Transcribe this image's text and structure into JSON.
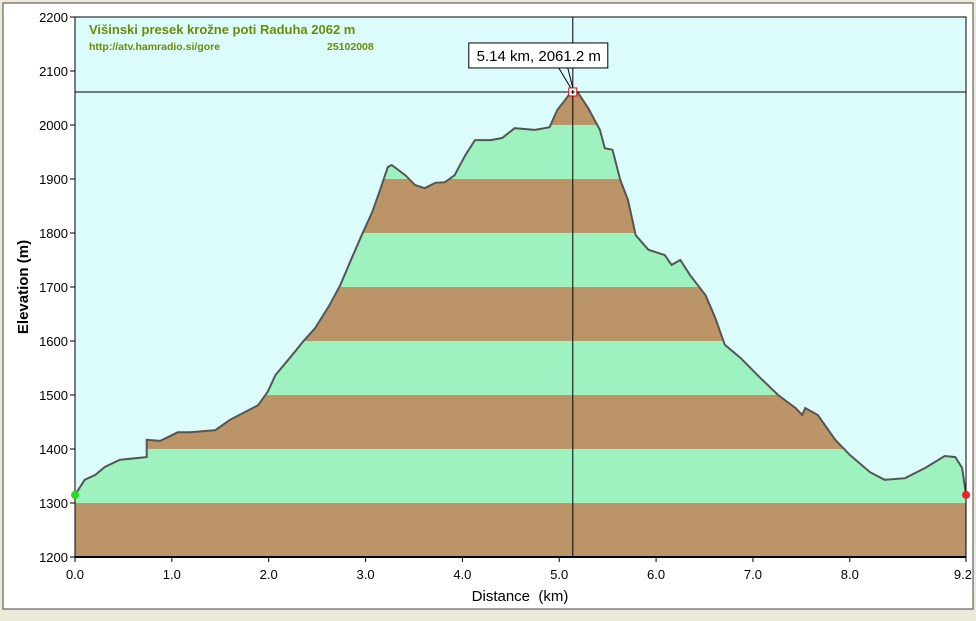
{
  "chart_data": {
    "type": "area",
    "title": "Višinski presek krožne poti Raduha 2062 m",
    "subtitle_url": "http://atv.hamradio.si/gore",
    "subtitle_date": "25102008",
    "xlabel": "Distance  (km)",
    "ylabel": "Elevation (m)",
    "xlim": [
      0,
      9.2
    ],
    "ylim": [
      1200,
      2200
    ],
    "x_ticks": [
      "0.0",
      "1.0",
      "2.0",
      "3.0",
      "4.0",
      "5.0",
      "6.0",
      "7.0",
      "8.0",
      "9.2"
    ],
    "x_tick_values": [
      0,
      1,
      2,
      3,
      4,
      5,
      6,
      7,
      8,
      9.2
    ],
    "y_ticks": [
      "1200",
      "1300",
      "1400",
      "1500",
      "1600",
      "1700",
      "1800",
      "1900",
      "2000",
      "2100",
      "2200"
    ],
    "y_tick_values": [
      1200,
      1300,
      1400,
      1500,
      1600,
      1700,
      1800,
      1900,
      2000,
      2100,
      2200
    ],
    "band_step": 100,
    "colors": {
      "plot_bg": "#dcfcfc",
      "band_a": "#bb9467",
      "band_b": "#9ef2c0",
      "line": "#555555",
      "title": "#6b8c00",
      "start": "#22dd22",
      "end": "#ee2222"
    },
    "cursor": {
      "x": 5.14,
      "y": 2061.2,
      "label": "5.14 km, 2061.2 m"
    },
    "x": [
      0,
      0.1,
      0.21,
      0.31,
      0.46,
      0.74,
      0.74,
      0.88,
      1.06,
      1.19,
      1.45,
      1.6,
      1.76,
      1.89,
      1.99,
      2.07,
      2.22,
      2.37,
      2.48,
      2.63,
      2.74,
      2.84,
      2.96,
      3.07,
      3.15,
      3.23,
      3.27,
      3.41,
      3.51,
      3.61,
      3.72,
      3.82,
      3.92,
      4.03,
      4.13,
      4.29,
      4.41,
      4.54,
      4.75,
      4.9,
      4.98,
      5.06,
      5.12,
      5.19,
      5.3,
      5.42,
      5.47,
      5.55,
      5.63,
      5.71,
      5.79,
      5.92,
      6.09,
      6.16,
      6.25,
      6.35,
      6.51,
      6.61,
      6.71,
      6.87,
      7.08,
      7.26,
      7.44,
      7.51,
      7.54,
      7.67,
      7.85,
      8.0,
      8.21,
      8.36,
      8.57,
      8.78,
      8.98,
      9.09,
      9.16,
      9.2
    ],
    "y": [
      1315,
      1343,
      1352,
      1367,
      1380,
      1385,
      1417,
      1415,
      1431,
      1431,
      1435,
      1454,
      1469,
      1481,
      1506,
      1537,
      1569,
      1602,
      1624,
      1667,
      1704,
      1746,
      1796,
      1839,
      1880,
      1922,
      1926,
      1907,
      1889,
      1883,
      1893,
      1894,
      1907,
      1944,
      1972,
      1972,
      1976,
      1994,
      1991,
      1996,
      2028,
      2046,
      2061,
      2061,
      2031,
      1991,
      1957,
      1954,
      1898,
      1861,
      1796,
      1769,
      1759,
      1741,
      1750,
      1722,
      1685,
      1643,
      1593,
      1569,
      1531,
      1500,
      1476,
      1463,
      1476,
      1463,
      1417,
      1389,
      1357,
      1343,
      1346,
      1365,
      1387,
      1385,
      1365,
      1315
    ]
  }
}
